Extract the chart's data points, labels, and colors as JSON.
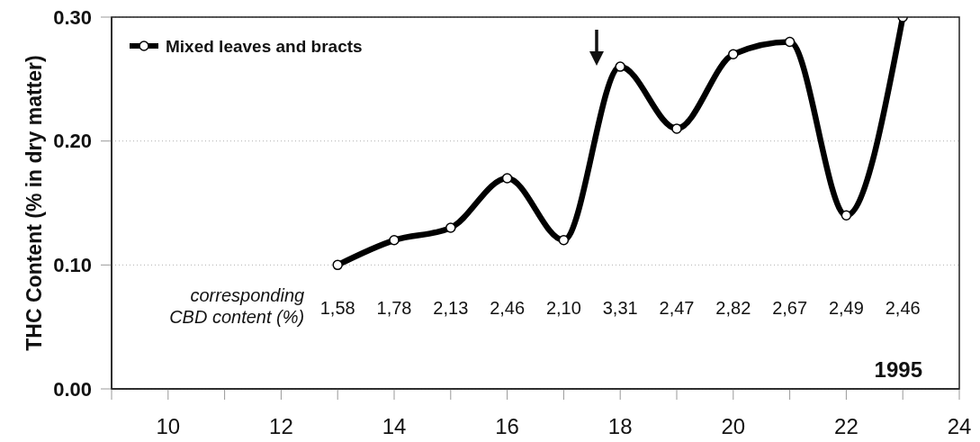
{
  "chart_data": {
    "type": "line",
    "ylabel": "THC Content (% in dry matter)",
    "x": [
      13,
      14,
      15,
      16,
      17,
      18,
      19,
      20,
      21,
      22,
      23
    ],
    "series": [
      {
        "name": "Mixed leaves and bracts",
        "color": "#000000",
        "values": [
          0.1,
          0.12,
          0.13,
          0.17,
          0.12,
          0.26,
          0.21,
          0.27,
          0.28,
          0.14,
          0.3
        ]
      }
    ],
    "xlim": [
      9,
      24
    ],
    "xticks": [
      {
        "value": 9,
        "label": null
      },
      10,
      {
        "value": 11,
        "label": null
      },
      12,
      {
        "value": 13,
        "label": null
      },
      14,
      {
        "value": 15,
        "label": null
      },
      16,
      {
        "value": 17,
        "label": null
      },
      18,
      {
        "value": 19,
        "label": null
      },
      20,
      {
        "value": 21,
        "label": null
      },
      22,
      {
        "value": 23,
        "label": null
      },
      24
    ],
    "ylim": [
      0,
      0.3
    ],
    "yticks": [
      {
        "value": 0,
        "label": "0.00"
      },
      {
        "value": 0.1,
        "label": "0.10"
      },
      {
        "value": 0.2,
        "label": "0.20"
      },
      {
        "value": 0.3,
        "label": "0.30"
      }
    ],
    "grid": "y",
    "legend": "top left",
    "marker": "circle",
    "line_style": "solid",
    "annotations": [
      "corresponding\nCBD content (%)",
      "1,58",
      "1,78",
      "2,13",
      "2,46",
      "2,10",
      "3,31",
      "2,47",
      "2,82",
      "2,67",
      "2,49",
      "2,46",
      "1995"
    ]
  }
}
